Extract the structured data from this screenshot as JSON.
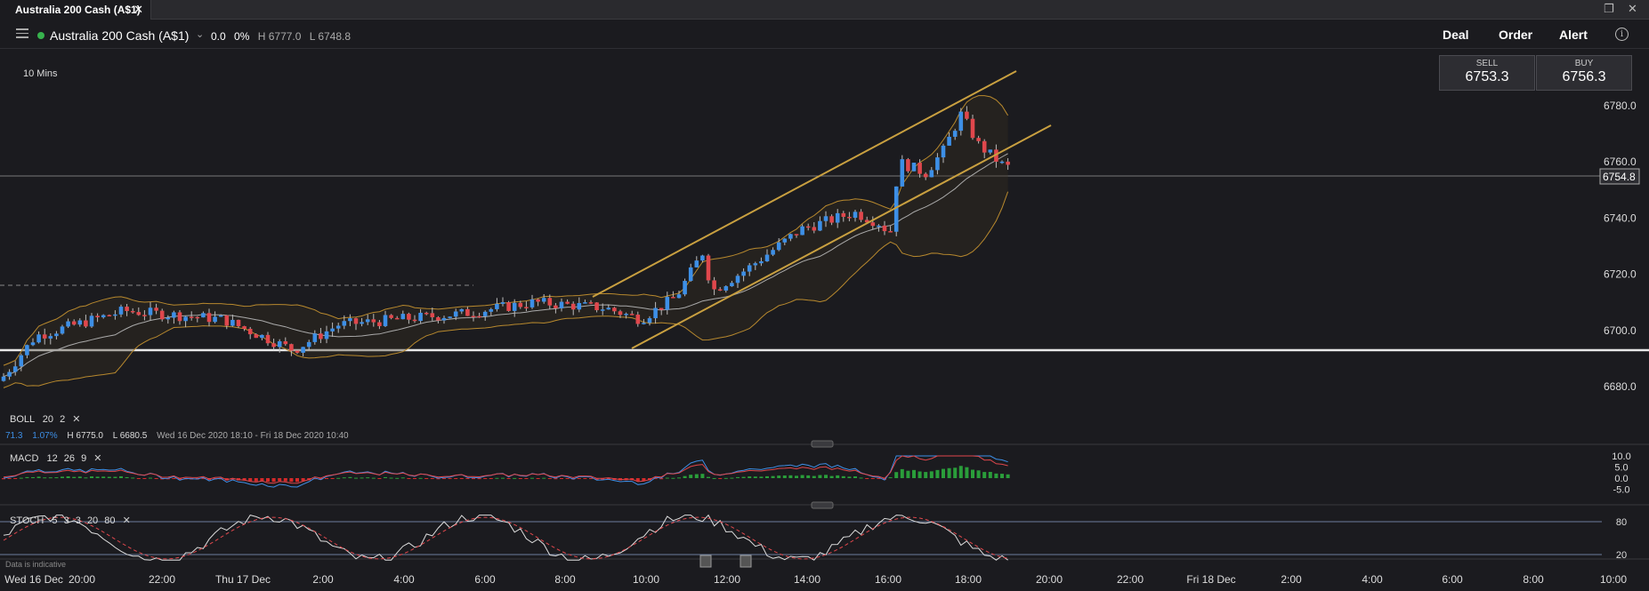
{
  "tab": {
    "title": "Australia 200 Cash (A$1)",
    "close": "✕"
  },
  "window": {
    "restore": "❐",
    "close": "✕"
  },
  "header": {
    "instrument": "Australia 200 Cash (A$1)",
    "change": "0.0",
    "change_pct": "0%",
    "high": "H 6777.0",
    "low": "L 6748.8",
    "actions": [
      "Deal",
      "Order",
      "Alert"
    ],
    "info": "i"
  },
  "chart": {
    "timeframe": "10 Mins",
    "sell": {
      "label": "SELL",
      "value": "6753.3"
    },
    "buy": {
      "label": "BUY",
      "value": "6756.3"
    },
    "current_price": "6754.8",
    "price_axis": [
      "6780.0",
      "6760.0",
      "6740.0",
      "6720.0",
      "6700.0",
      "6680.0"
    ],
    "x_axis": [
      "Wed 16 Dec",
      "20:00",
      "22:00",
      "Thu 17 Dec",
      "2:00",
      "4:00",
      "6:00",
      "8:00",
      "10:00",
      "12:00",
      "14:00",
      "16:00",
      "18:00",
      "20:00",
      "22:00",
      "Fri 18 Dec",
      "2:00",
      "4:00",
      "6:00",
      "8:00",
      "10:00"
    ],
    "boll": {
      "name": "BOLL",
      "p1": "20",
      "p2": "2",
      "remove": "✕"
    },
    "stats": {
      "v1": "71.3",
      "v2": "1.07%",
      "high": "H 6775.0",
      "low": "L 6680.5",
      "range": "Wed 16 Dec 2020 18:10 - Fri 18 Dec 2020 10:40"
    },
    "macd": {
      "name": "MACD",
      "p1": "12",
      "p2": "26",
      "p3": "9",
      "remove": "✕",
      "axis": [
        "10.0",
        "5.0",
        "0.0",
        "-5.0"
      ]
    },
    "stoch": {
      "name": "STOCH",
      "p1": "5",
      "p2": "3",
      "p3": "3",
      "p4": "20",
      "p5": "80",
      "remove": "✕",
      "axis": [
        "80",
        "20"
      ]
    },
    "disclaimer": "Data is indicative"
  },
  "colors": {
    "up": "#3d8fe6",
    "down": "#e0474c",
    "channel": "#c9a040",
    "bands": "#b8892e"
  }
}
